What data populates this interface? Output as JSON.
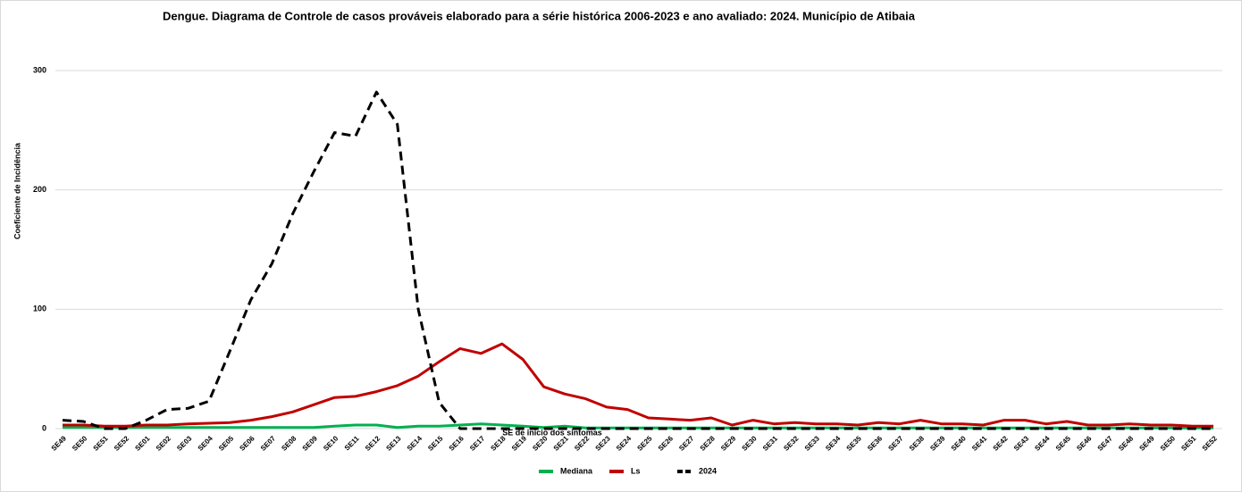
{
  "chart_data": {
    "type": "line",
    "title": "Dengue. Diagrama de Controle de casos prováveis  elaborado para a série histórica 2006-2023 e ano avaliado: 2024. Município de Atibaia",
    "x_label": "SE de início dos sintomas",
    "y_label": "Coeficiente de Incidência",
    "categories": [
      "SE49",
      "SE50",
      "SE51",
      "SE52",
      "SE01",
      "SE02",
      "SE03",
      "SE04",
      "SE05",
      "SE06",
      "SE07",
      "SE08",
      "SE09",
      "SE10",
      "SE11",
      "SE12",
      "SE13",
      "SE14",
      "SE15",
      "SE16",
      "SE17",
      "SE18",
      "SE19",
      "SE20",
      "SE21",
      "SE22",
      "SE23",
      "SE24",
      "SE25",
      "SE26",
      "SE27",
      "SE28",
      "SE29",
      "SE30",
      "SE31",
      "SE32",
      "SE33",
      "SE34",
      "SE35",
      "SE36",
      "SE37",
      "SE38",
      "SE39",
      "SE40",
      "SE41",
      "SE42",
      "SE43",
      "SE44",
      "SE45",
      "SE46",
      "SE47",
      "SE48",
      "SE49",
      "SE50",
      "SE51",
      "SE52"
    ],
    "series": [
      {
        "name": "Mediana",
        "color": "#00b050",
        "dashed": false,
        "values": [
          1,
          1,
          1,
          1,
          1,
          1,
          1,
          1,
          1,
          1,
          1,
          1,
          1,
          2,
          3,
          3,
          1,
          2,
          2,
          3,
          4,
          3,
          2,
          1,
          2,
          0.5,
          0.5,
          0.5,
          0.5,
          0.5,
          0.5,
          0.5,
          0.5,
          0.5,
          0.5,
          0.5,
          0.5,
          0.5,
          0.5,
          0.5,
          0.5,
          0.5,
          0.5,
          0.5,
          0.5,
          0.5,
          0.5,
          0.5,
          0.5,
          0.5,
          0.5,
          0.5,
          0.5,
          0.5,
          0.5,
          0.5
        ]
      },
      {
        "name": "Ls",
        "color": "#c00000",
        "dashed": false,
        "values": [
          3,
          3,
          2,
          2,
          3,
          3,
          4,
          4.5,
          5,
          7,
          10,
          14,
          20,
          26,
          27,
          31,
          36,
          44,
          56,
          67,
          63,
          71,
          58,
          35,
          29,
          25,
          18,
          16,
          9,
          8,
          7,
          9,
          3,
          7,
          4,
          5,
          4,
          4,
          3,
          5,
          4,
          7,
          4,
          4,
          3,
          7,
          7,
          4,
          6,
          3,
          3,
          4,
          3,
          3,
          2,
          2
        ]
      },
      {
        "name": "2024",
        "color": "#000000",
        "dashed": true,
        "values": [
          7,
          6,
          0,
          0,
          7,
          16,
          17,
          23,
          65,
          108,
          138,
          180,
          215,
          248,
          245,
          282,
          255,
          100,
          22,
          0,
          0,
          0,
          0,
          0,
          0,
          0,
          0,
          0,
          0,
          0,
          0,
          0,
          0,
          0,
          0,
          0,
          0,
          0,
          0,
          0,
          0,
          0,
          0,
          0,
          0,
          0,
          0,
          0,
          0,
          0,
          0,
          0,
          0,
          0,
          0,
          0
        ]
      }
    ],
    "ylim": [
      0,
      300
    ],
    "yticks": [
      0,
      100,
      200,
      300
    ],
    "grid": true,
    "legend": "bottom"
  }
}
